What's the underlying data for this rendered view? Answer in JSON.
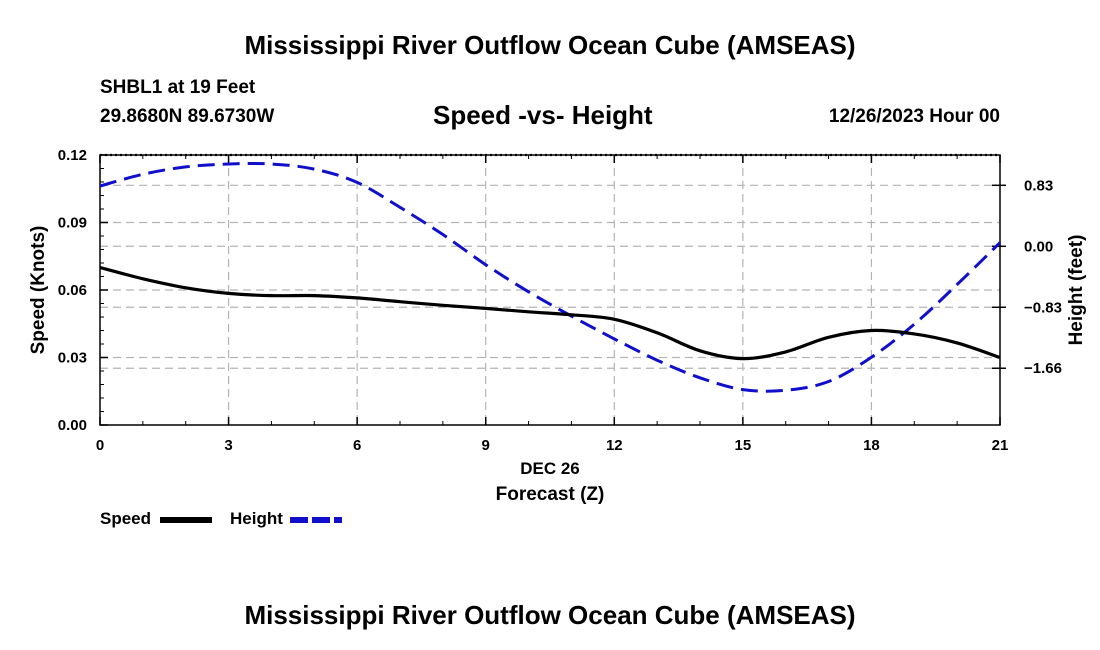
{
  "page": {
    "title_top": "Mississippi River Outflow Ocean Cube (AMSEAS)",
    "title_bottom": "Mississippi River Outflow Ocean Cube (AMSEAS)",
    "station": "SHBL1 at 19 Feet",
    "coords": "29.8680N  89.6730W",
    "datetime": "12/26/2023 Hour 00"
  },
  "colors": {
    "speed": "#000000",
    "height": "#1010cc",
    "grid": "#b4b4b4"
  },
  "chart_data": {
    "type": "line",
    "title": "Speed -vs- Height",
    "xlabel": "Forecast (Z)",
    "xdate": "DEC 26",
    "x_ticks": [
      0,
      3,
      6,
      9,
      12,
      15,
      18,
      21
    ],
    "xlim": [
      0,
      21
    ],
    "ylabel_left": "Speed (Knots)",
    "ylim_left": [
      0,
      0.12
    ],
    "yticks_left": [
      "0.00",
      "0.03",
      "0.06",
      "0.09",
      "0.12"
    ],
    "ylabel_right": "Height (feet)",
    "ylim_right": [
      -2.4325,
      1.2425
    ],
    "yticks_right": [
      {
        "value": 0.83,
        "label": "0.83"
      },
      {
        "value": 0.0,
        "label": "0.00"
      },
      {
        "value": -0.83,
        "label": "−0.83"
      },
      {
        "value": -1.66,
        "label": "−1.66"
      }
    ],
    "grid": true,
    "series": [
      {
        "name": "Speed",
        "axis": "left",
        "style": "solid",
        "x": [
          0,
          1,
          2,
          3,
          4,
          5,
          6,
          7,
          8,
          9,
          10,
          11,
          12,
          13,
          14,
          15,
          16,
          17,
          18,
          19,
          20,
          21
        ],
        "values": [
          0.07,
          0.065,
          0.061,
          0.0585,
          0.0575,
          0.0575,
          0.0565,
          0.0548,
          0.0532,
          0.0518,
          0.0503,
          0.049,
          0.047,
          0.041,
          0.033,
          0.0295,
          0.0325,
          0.039,
          0.042,
          0.0405,
          0.0365,
          0.03
        ]
      },
      {
        "name": "Height",
        "axis": "right",
        "style": "dashed",
        "x": [
          0,
          1,
          2,
          3,
          4,
          5,
          6,
          7,
          8,
          9,
          10,
          11,
          12,
          13,
          14,
          15,
          16,
          17,
          18,
          19,
          20,
          21
        ],
        "values": [
          0.82,
          0.98,
          1.08,
          1.12,
          1.12,
          1.05,
          0.87,
          0.53,
          0.16,
          -0.25,
          -0.62,
          -0.95,
          -1.26,
          -1.55,
          -1.79,
          -1.95,
          -1.96,
          -1.84,
          -1.51,
          -1.06,
          -0.52,
          0.05
        ]
      }
    ]
  }
}
